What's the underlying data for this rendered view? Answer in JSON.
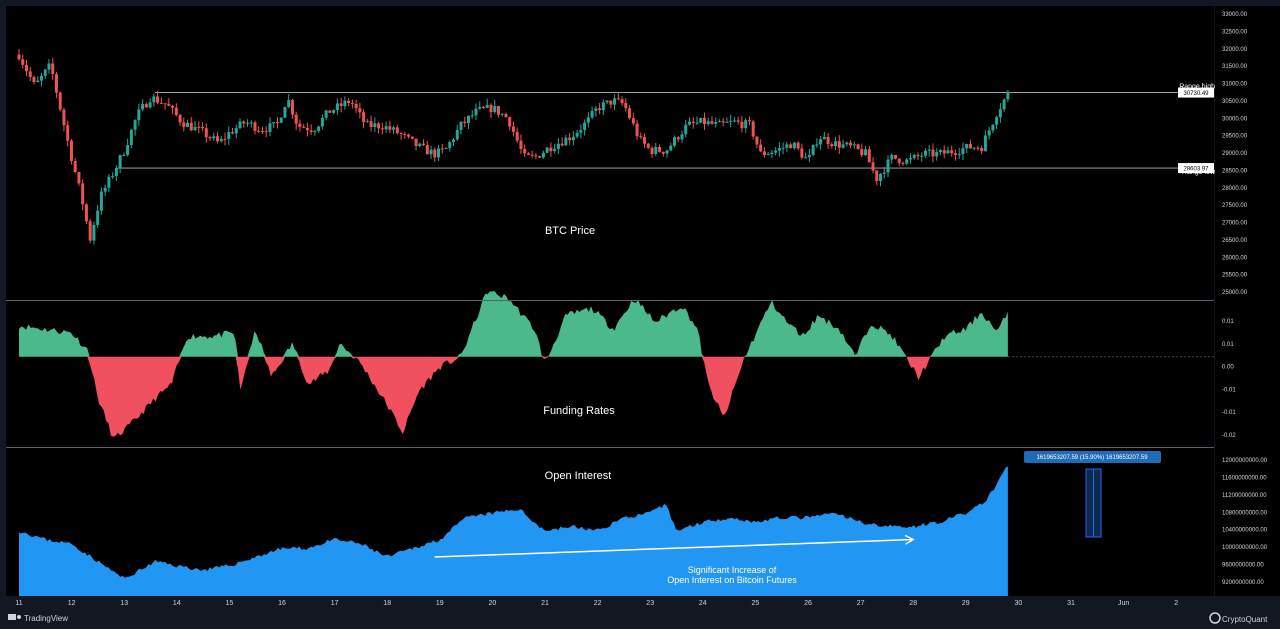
{
  "colors": {
    "background": "#000000",
    "chrome": "#131722",
    "candle_up": "#26a69a",
    "candle_down": "#ef5350",
    "funding_positive": "#4cb98c",
    "funding_negative": "#f0505f",
    "open_interest": "#2196f3",
    "divider": "#5d606b",
    "level_line": "#b2b5be",
    "tag": "#1e6bb8"
  },
  "footer": {
    "tradingview_label": "TradingView",
    "cryptoquant_label": "CryptoQuant",
    "tradingview_icon": "tradingview-logo-icon",
    "cryptoquant_icon": "cryptoquant-logo-icon"
  },
  "chart_data": [
    {
      "type": "candlestick",
      "title": "BTC Price",
      "x_dates": [
        "11",
        "12",
        "13",
        "14",
        "15",
        "16",
        "17",
        "18",
        "19",
        "20",
        "21",
        "22",
        "23",
        "24",
        "25",
        "26",
        "27",
        "28",
        "29",
        "30",
        "31",
        "Jun",
        "2"
      ],
      "ylim": [
        25000,
        33000
      ],
      "yticks": [
        "33000.00",
        "32500.00",
        "32000.00",
        "31500.00",
        "31000.00",
        "30500.00",
        "30000.00",
        "29500.00",
        "29000.00",
        "28500.00",
        "28000.00",
        "27500.00",
        "27000.00",
        "26500.00",
        "26000.00",
        "25500.00",
        "25000.00"
      ],
      "levels": [
        {
          "name": "Range high",
          "value": 30730.49,
          "tag": "30730.49"
        },
        {
          "name": "Range low",
          "value": 28603.97,
          "tag": "28603.97"
        }
      ],
      "path_points": [
        [
          0,
          31800
        ],
        [
          0.3,
          30900
        ],
        [
          0.6,
          31500
        ],
        [
          0.95,
          29200
        ],
        [
          1.2,
          27700
        ],
        [
          1.35,
          26600
        ],
        [
          1.55,
          27800
        ],
        [
          1.8,
          28500
        ],
        [
          2.0,
          29100
        ],
        [
          2.25,
          30100
        ],
        [
          2.5,
          30600
        ],
        [
          2.8,
          30400
        ],
        [
          3.1,
          29900
        ],
        [
          3.5,
          29600
        ],
        [
          3.8,
          29300
        ],
        [
          4.0,
          29600
        ],
        [
          4.3,
          29900
        ],
        [
          4.6,
          29700
        ],
        [
          4.9,
          29800
        ],
        [
          5.1,
          30600
        ],
        [
          5.3,
          29800
        ],
        [
          5.6,
          29700
        ],
        [
          5.9,
          30200
        ],
        [
          6.3,
          30500
        ],
        [
          6.6,
          29800
        ],
        [
          6.9,
          29800
        ],
        [
          7.2,
          29600
        ],
        [
          7.6,
          29200
        ],
        [
          7.9,
          29000
        ],
        [
          8.1,
          29100
        ],
        [
          8.4,
          29800
        ],
        [
          8.7,
          30200
        ],
        [
          9.0,
          30300
        ],
        [
          9.3,
          30000
        ],
        [
          9.6,
          28900
        ],
        [
          9.8,
          28900
        ],
        [
          10.1,
          29200
        ],
        [
          10.5,
          29500
        ],
        [
          10.8,
          29900
        ],
        [
          11.0,
          30300
        ],
        [
          11.3,
          30500
        ],
        [
          11.5,
          30400
        ],
        [
          11.8,
          29400
        ],
        [
          12.0,
          29100
        ],
        [
          12.3,
          29100
        ],
        [
          12.7,
          29800
        ],
        [
          13.0,
          29900
        ],
        [
          13.3,
          29800
        ],
        [
          13.6,
          29900
        ],
        [
          13.9,
          29800
        ],
        [
          14.1,
          29000
        ],
        [
          14.4,
          29100
        ],
        [
          14.7,
          29300
        ],
        [
          15.0,
          28800
        ],
        [
          15.2,
          29500
        ],
        [
          15.5,
          29300
        ],
        [
          15.8,
          29200
        ],
        [
          16.1,
          29000
        ],
        [
          16.3,
          28300
        ],
        [
          16.6,
          28900
        ],
        [
          16.9,
          28800
        ],
        [
          17.2,
          29000
        ],
        [
          17.5,
          29000
        ],
        [
          17.8,
          29100
        ],
        [
          18.1,
          29200
        ],
        [
          18.3,
          29200
        ],
        [
          18.6,
          30200
        ],
        [
          18.8,
          30700
        ]
      ]
    },
    {
      "type": "area",
      "title": "Funding Rates",
      "ylim": [
        -0.025,
        0.015
      ],
      "yticks": [
        "0.01",
        "0.01",
        "0.00",
        "-0.01",
        "-0.01",
        "-0.02"
      ],
      "path_points": [
        [
          0,
          0.009
        ],
        [
          0.5,
          0.008
        ],
        [
          1.0,
          0.007
        ],
        [
          1.3,
          0.002
        ],
        [
          1.5,
          -0.012
        ],
        [
          1.8,
          -0.024
        ],
        [
          2.1,
          -0.02
        ],
        [
          2.6,
          -0.012
        ],
        [
          2.9,
          -0.008
        ],
        [
          3.2,
          0.006
        ],
        [
          3.7,
          0.006
        ],
        [
          4.1,
          0.007
        ],
        [
          4.2,
          -0.01
        ],
        [
          4.5,
          0.008
        ],
        [
          4.8,
          -0.006
        ],
        [
          5.2,
          0.004
        ],
        [
          5.5,
          -0.008
        ],
        [
          5.9,
          -0.004
        ],
        [
          6.1,
          0.004
        ],
        [
          6.5,
          -0.002
        ],
        [
          7.0,
          -0.014
        ],
        [
          7.3,
          -0.022
        ],
        [
          7.6,
          -0.01
        ],
        [
          8.0,
          -0.003
        ],
        [
          8.4,
          0.0
        ],
        [
          8.9,
          0.019
        ],
        [
          9.3,
          0.017
        ],
        [
          9.8,
          0.008
        ],
        [
          10.0,
          -0.002
        ],
        [
          10.4,
          0.012
        ],
        [
          10.9,
          0.014
        ],
        [
          11.3,
          0.008
        ],
        [
          11.7,
          0.017
        ],
        [
          12.1,
          0.01
        ],
        [
          12.6,
          0.015
        ],
        [
          12.9,
          0.008
        ],
        [
          13.1,
          -0.008
        ],
        [
          13.4,
          -0.018
        ],
        [
          13.8,
          0.0
        ],
        [
          14.3,
          0.016
        ],
        [
          14.6,
          0.01
        ],
        [
          14.9,
          0.006
        ],
        [
          15.2,
          0.012
        ],
        [
          15.6,
          0.008
        ],
        [
          15.9,
          0.0
        ],
        [
          16.2,
          0.01
        ],
        [
          16.6,
          0.006
        ],
        [
          17.1,
          -0.006
        ],
        [
          17.6,
          0.006
        ],
        [
          18.0,
          0.008
        ],
        [
          18.3,
          0.013
        ],
        [
          18.6,
          0.007
        ],
        [
          18.8,
          0.013
        ]
      ]
    },
    {
      "type": "area",
      "title": "Open Interest",
      "ylim": [
        9000000000,
        12200000000
      ],
      "yticks": [
        "12000000000.00",
        "11600000000.00",
        "11200000000.00",
        "10800000000.00",
        "10400000000.00",
        "10000000000.00",
        "9600000000.00",
        "9200000000.00"
      ],
      "measurement_label": "1619653207.59 (15.90%) 1619653207.59",
      "annotation": [
        "Significant Increase of",
        "Open Interest on Bitcoin Futures"
      ],
      "trend_arrow": [
        [
          7.9,
          9800000000
        ],
        [
          17.0,
          10200000000
        ]
      ],
      "path_points": [
        [
          0,
          10400000000
        ],
        [
          0.5,
          10200000000
        ],
        [
          1.0,
          10100000000
        ],
        [
          1.5,
          9700000000
        ],
        [
          2.0,
          9300000000
        ],
        [
          2.6,
          9700000000
        ],
        [
          3.0,
          9600000000
        ],
        [
          3.5,
          9500000000
        ],
        [
          4.0,
          9600000000
        ],
        [
          4.5,
          9800000000
        ],
        [
          5.0,
          10000000000
        ],
        [
          5.5,
          10000000000
        ],
        [
          6.0,
          10200000000
        ],
        [
          6.5,
          10100000000
        ],
        [
          7.0,
          9800000000
        ],
        [
          7.5,
          10000000000
        ],
        [
          8.0,
          10200000000
        ],
        [
          8.5,
          10700000000
        ],
        [
          9.0,
          10800000000
        ],
        [
          9.5,
          10900000000
        ],
        [
          10.0,
          10400000000
        ],
        [
          10.5,
          10500000000
        ],
        [
          11.0,
          10400000000
        ],
        [
          11.5,
          10700000000
        ],
        [
          12.0,
          10800000000
        ],
        [
          12.3,
          11000000000
        ],
        [
          12.5,
          10400000000
        ],
        [
          13.0,
          10600000000
        ],
        [
          13.5,
          10700000000
        ],
        [
          14.0,
          10600000000
        ],
        [
          14.5,
          10700000000
        ],
        [
          15.0,
          10700000000
        ],
        [
          15.5,
          10800000000
        ],
        [
          16.0,
          10600000000
        ],
        [
          16.5,
          10500000000
        ],
        [
          17.0,
          10500000000
        ],
        [
          17.5,
          10600000000
        ],
        [
          18.0,
          10800000000
        ],
        [
          18.4,
          11100000000
        ],
        [
          18.8,
          11900000000
        ]
      ]
    }
  ]
}
